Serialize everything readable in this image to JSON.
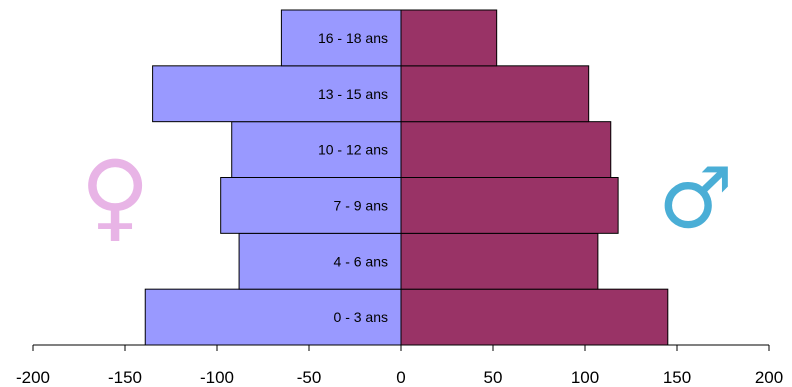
{
  "chart_data": {
    "type": "bar",
    "orientation": "horizontal",
    "layout": "population-pyramid",
    "categories": [
      "0 - 3 ans",
      "4 - 6 ans",
      "7 - 9 ans",
      "10 - 12 ans",
      "13 - 15 ans",
      "16 - 18 ans"
    ],
    "series": [
      {
        "values": [
          -139,
          -88,
          -98,
          -92,
          -135,
          -65
        ],
        "color": "#9999ff"
      },
      {
        "values": [
          145,
          107,
          118,
          114,
          102,
          52
        ],
        "color": "#993366"
      }
    ],
    "xlim": [
      -200,
      200
    ],
    "xticks": [
      -200,
      -150,
      -100,
      -50,
      0,
      50,
      100,
      150,
      200
    ],
    "xtick_labels": [
      "-200",
      "-150",
      "-100",
      "-50",
      "0",
      "50",
      "100",
      "150",
      "200"
    ],
    "grid": false,
    "legend": "none"
  },
  "icons": {
    "female": {
      "name": "female-symbol-icon",
      "glyph": "♀",
      "color": "#e8b4e6"
    },
    "male": {
      "name": "male-symbol-icon",
      "glyph": "♂",
      "color": "#4aaed6"
    }
  }
}
